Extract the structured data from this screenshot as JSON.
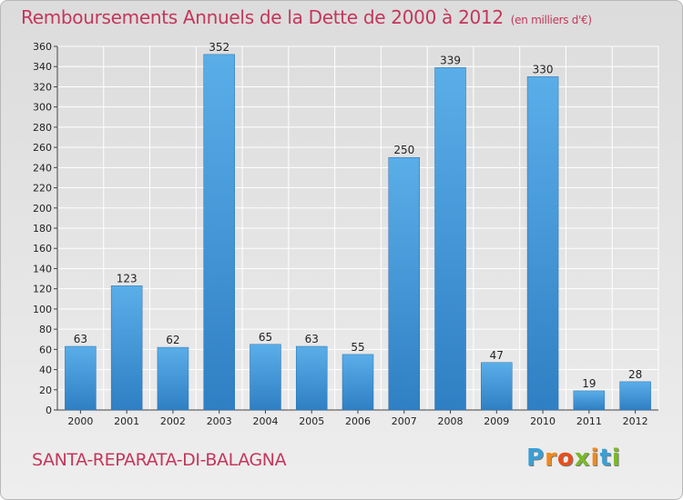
{
  "header": {
    "title": "Remboursements Annuels de la Dette de 2000 à 2012",
    "unit": "(en milliers d'€)"
  },
  "footer": {
    "commune": "SANTA-REPARATA-DI-BALAGNA",
    "logo_letters": [
      "P",
      "r",
      "o",
      "x",
      "i",
      "t",
      "i"
    ],
    "logo_colors": [
      "#3a9fd6",
      "#f08a1c",
      "#e84e1b",
      "#7ab929",
      "#f08a1c",
      "#3a9fd6",
      "#7ab929"
    ]
  },
  "chart_data": {
    "type": "bar",
    "title": "Remboursements Annuels de la Dette de 2000 à 2012",
    "xlabel": "",
    "ylabel": "",
    "categories": [
      "2000",
      "2001",
      "2002",
      "2003",
      "2004",
      "2005",
      "2006",
      "2007",
      "2008",
      "2009",
      "2010",
      "2011",
      "2012"
    ],
    "values": [
      63,
      123,
      62,
      352,
      65,
      63,
      55,
      250,
      339,
      47,
      330,
      19,
      28
    ],
    "ylim": [
      0,
      360
    ],
    "yticks": [
      0,
      20,
      40,
      60,
      80,
      100,
      120,
      140,
      160,
      180,
      200,
      220,
      240,
      260,
      280,
      300,
      320,
      340,
      360
    ],
    "grid": true,
    "bar_color_light": "#5aaee8",
    "bar_color_dark": "#2f7fc4",
    "grid_color": "#ffffff"
  }
}
